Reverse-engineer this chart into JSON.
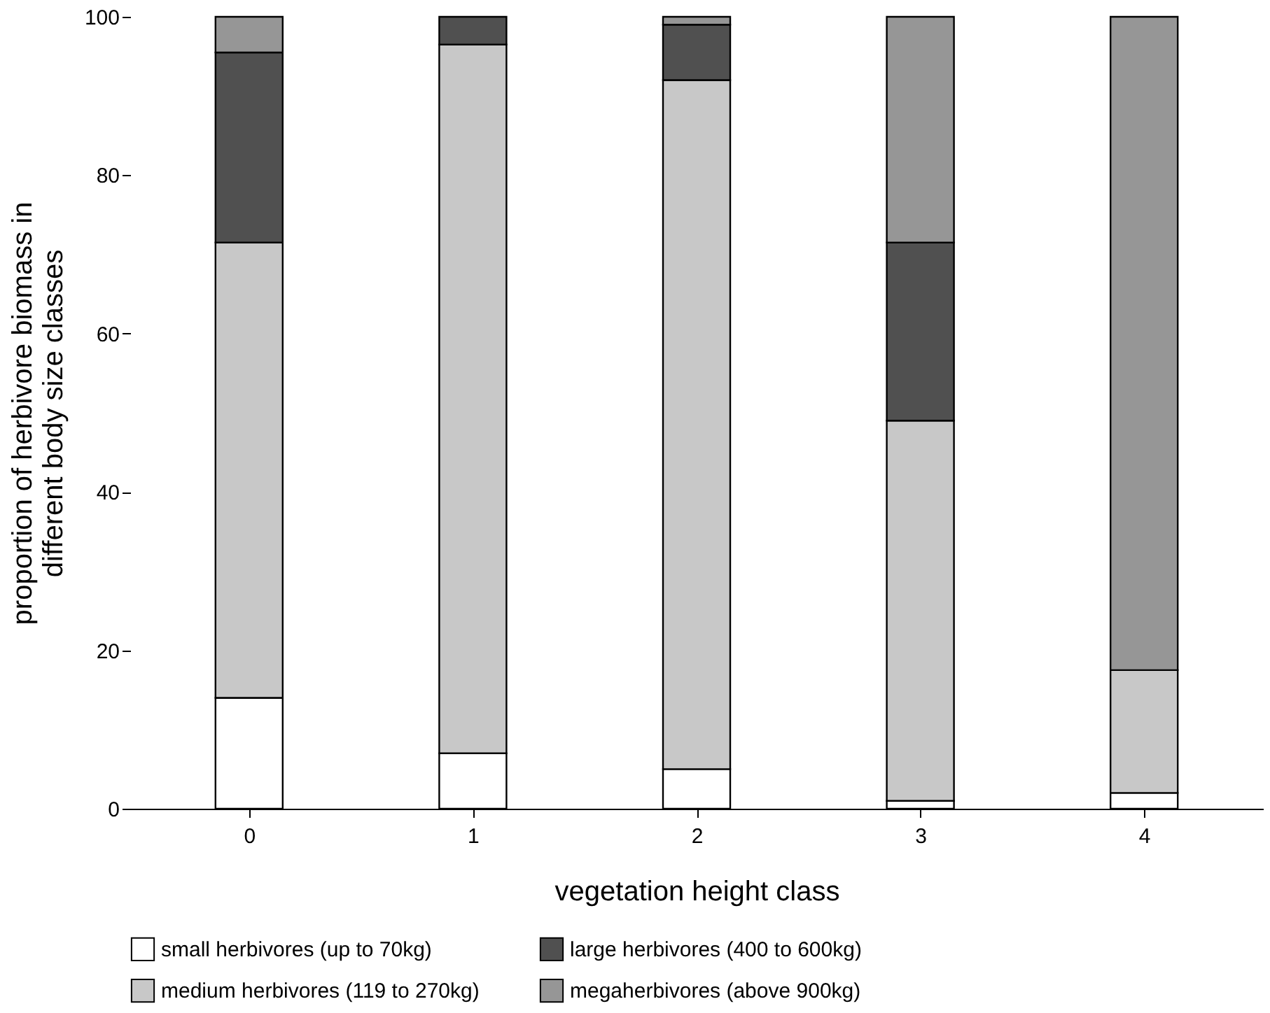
{
  "chart_data": {
    "type": "bar",
    "stacked": true,
    "xlabel": "vegetation height class",
    "ylabel": "proportion of herbivore biomass in\ndifferent body size classes",
    "categories": [
      "0",
      "1",
      "2",
      "3",
      "4"
    ],
    "series": [
      {
        "name": "small herbivores (up to 70kg)",
        "color": "#ffffff",
        "values": [
          14,
          7,
          5,
          1,
          2
        ]
      },
      {
        "name": "medium herbivores (119 to 270kg)",
        "color": "#c8c8c8",
        "values": [
          57.5,
          89.5,
          87,
          48,
          15.5
        ]
      },
      {
        "name": "large herbivores (400 to 600kg)",
        "color": "#505050",
        "values": [
          24,
          3.5,
          7,
          22.5,
          0
        ]
      },
      {
        "name": "megaherbivores (above 900kg)",
        "color": "#969696",
        "values": [
          4.5,
          0,
          1,
          28.5,
          82.5
        ]
      }
    ],
    "ylim": [
      0,
      100
    ],
    "yticks": [
      0,
      20,
      40,
      60,
      80,
      100
    ],
    "grid": false,
    "legend": "bottom"
  }
}
